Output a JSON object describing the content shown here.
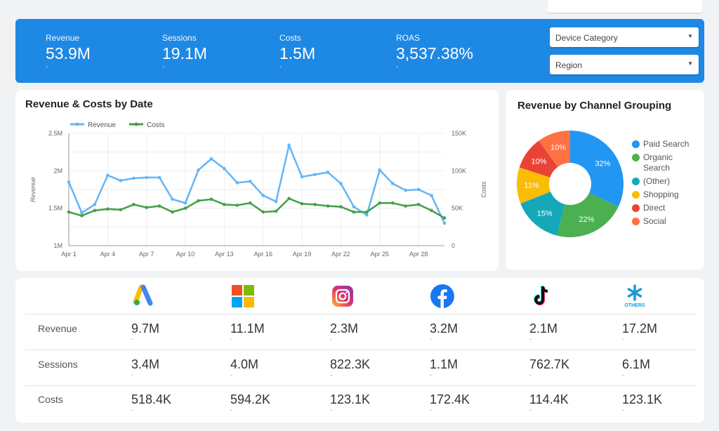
{
  "kpis": [
    {
      "label": "Revenue",
      "value": "53.9M",
      "delta": "-"
    },
    {
      "label": "Sessions",
      "value": "19.1M",
      "delta": "-"
    },
    {
      "label": "Costs",
      "value": "1.5M",
      "delta": "-"
    },
    {
      "label": "ROAS",
      "value": "3,537.38%",
      "delta": "-"
    }
  ],
  "filters": {
    "device": "Device Category",
    "region": "Region"
  },
  "colors": {
    "banner": "#1e88e5",
    "revenue": "#64b5f6",
    "costs": "#43a047"
  },
  "chart_data": [
    {
      "type": "line",
      "title": "Revenue & Costs by Date",
      "ylabel": "Revenue",
      "y2label": "Costs",
      "ylim": [
        1000000,
        2500000
      ],
      "y2lim": [
        0,
        150000
      ],
      "yticks": [
        "1M",
        "1.5M",
        "2M",
        "2.5M"
      ],
      "y2ticks": [
        "0",
        "50K",
        "100K",
        "150K"
      ],
      "xticks": [
        "Apr 1",
        "Apr 4",
        "Apr 7",
        "Apr 10",
        "Apr 13",
        "Apr 16",
        "Apr 19",
        "Apr 22",
        "Apr 25",
        "Apr 28"
      ],
      "x": [
        1,
        2,
        3,
        4,
        5,
        6,
        7,
        8,
        9,
        10,
        11,
        12,
        13,
        14,
        15,
        16,
        17,
        18,
        19,
        20,
        21,
        22,
        23,
        24,
        25,
        26,
        27,
        28,
        29,
        30
      ],
      "series": [
        {
          "name": "Revenue",
          "axis": "left",
          "values": [
            1850000,
            1440000,
            1550000,
            1940000,
            1870000,
            1900000,
            1910000,
            1910000,
            1620000,
            1570000,
            2010000,
            2160000,
            2030000,
            1840000,
            1860000,
            1670000,
            1590000,
            2340000,
            1920000,
            1950000,
            1980000,
            1830000,
            1520000,
            1410000,
            2010000,
            1830000,
            1740000,
            1750000,
            1670000,
            1300000
          ]
        },
        {
          "name": "Costs",
          "axis": "right",
          "values": [
            45000,
            40000,
            47000,
            49000,
            48000,
            55000,
            51000,
            53000,
            45000,
            50000,
            60000,
            62000,
            55000,
            54000,
            57000,
            45000,
            46000,
            63000,
            56000,
            55000,
            53000,
            52000,
            45000,
            45000,
            57000,
            57000,
            53000,
            55000,
            47000,
            37000
          ]
        }
      ],
      "legend": "top-left"
    },
    {
      "type": "pie",
      "title": "Revenue by Channel Grouping",
      "legend": "right",
      "slices": [
        {
          "label": "Paid Search",
          "value": 32,
          "text": "32%",
          "color": "#2196f3"
        },
        {
          "label": "Organic Search",
          "value": 22,
          "text": "22%",
          "color": "#4caf50"
        },
        {
          "label": "(Other)",
          "value": 15,
          "text": "15%",
          "color": "#14a8b8"
        },
        {
          "label": "Shopping",
          "value": 11,
          "text": "11%",
          "color": "#fbbc05"
        },
        {
          "label": "Direct",
          "value": 10,
          "text": "10%",
          "color": "#ea4335"
        },
        {
          "label": "Social",
          "value": 10,
          "text": "10%",
          "color": "#ff7043"
        }
      ]
    }
  ],
  "table": {
    "channels": [
      "google-ads",
      "microsoft",
      "instagram",
      "facebook",
      "tiktok",
      "others"
    ],
    "others_label": "OTHERS",
    "rows": [
      {
        "label": "Revenue",
        "values": [
          "9.7M",
          "11.1M",
          "2.3M",
          "3.2M",
          "2.1M",
          "17.2M"
        ]
      },
      {
        "label": "Sessions",
        "values": [
          "3.4M",
          "4.0M",
          "822.3K",
          "1.1M",
          "762.7K",
          "6.1M"
        ]
      },
      {
        "label": "Costs",
        "values": [
          "518.4K",
          "594.2K",
          "123.1K",
          "172.4K",
          "114.4K",
          "123.1K"
        ]
      }
    ],
    "delta": "-"
  }
}
